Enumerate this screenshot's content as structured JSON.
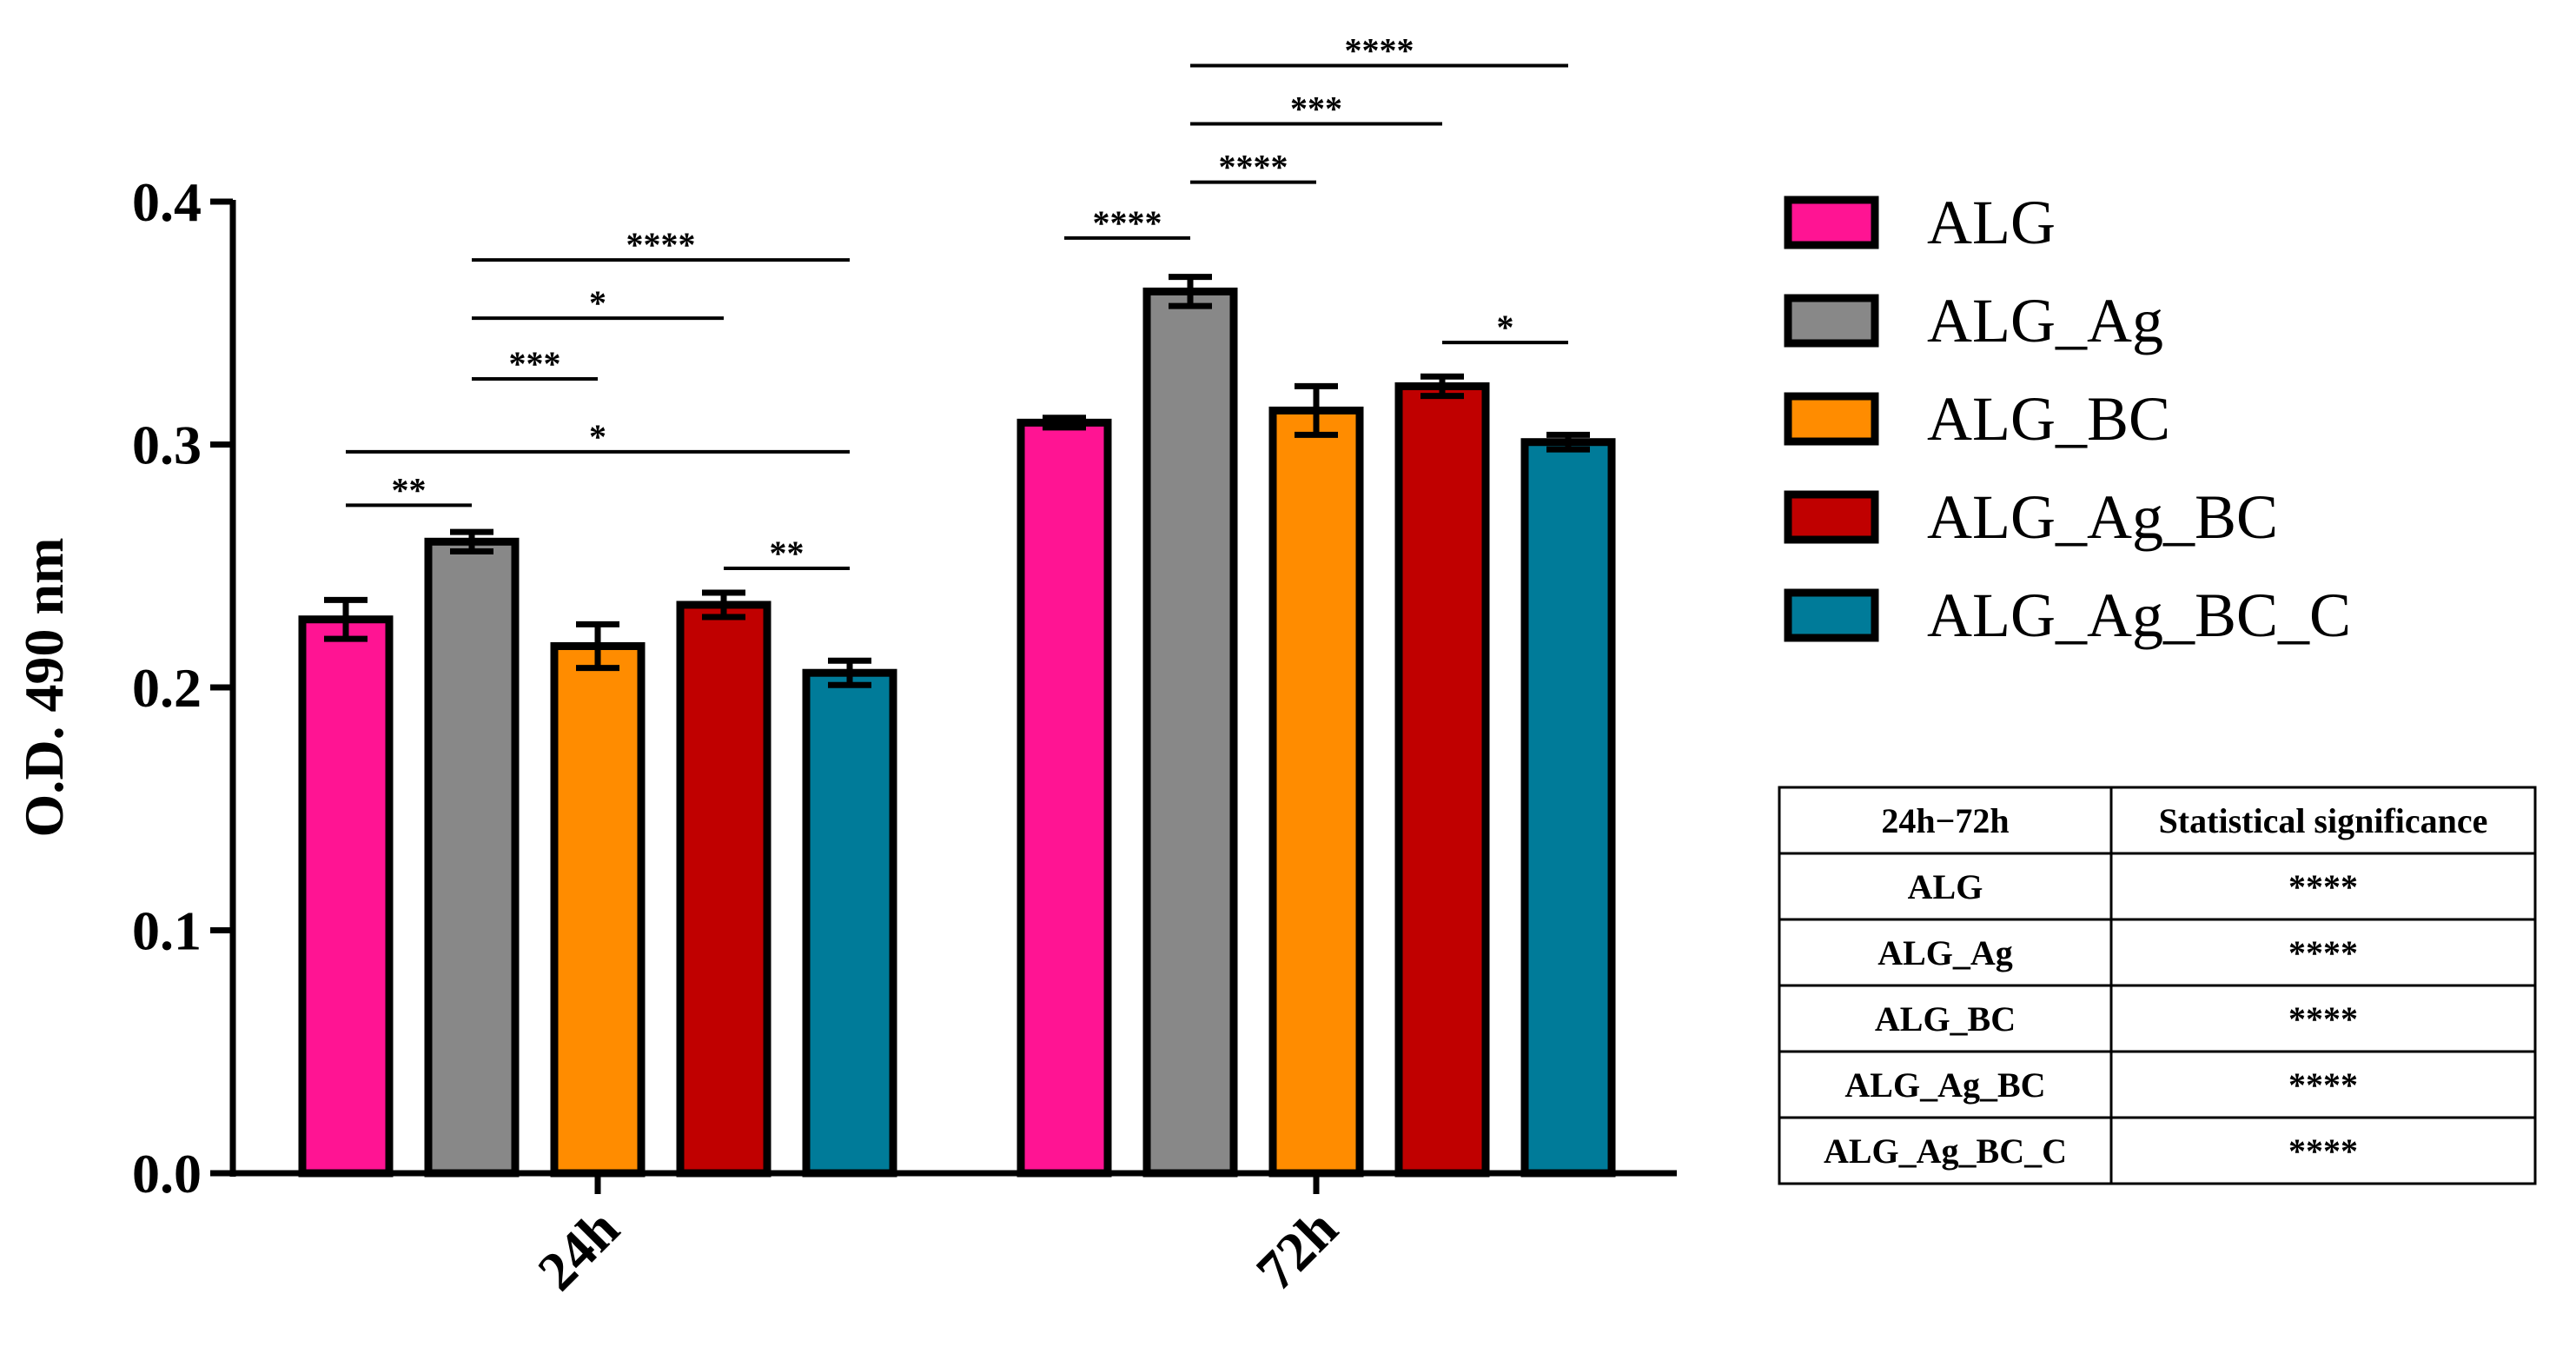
{
  "chart_data": {
    "type": "bar",
    "ylabel": "O.D. 490 nm",
    "xlabel": "",
    "ylim": [
      0,
      0.4
    ],
    "yticks": [
      "0.0",
      "0.1",
      "0.2",
      "0.3",
      "0.4"
    ],
    "categories": [
      "24h",
      "72h"
    ],
    "series": [
      {
        "name": "ALG",
        "color": "#ff1493",
        "values": [
          0.228,
          0.309
        ],
        "errors": [
          0.008,
          0.002
        ]
      },
      {
        "name": "ALG_Ag",
        "color": "#888888",
        "values": [
          0.26,
          0.363
        ],
        "errors": [
          0.004,
          0.006
        ]
      },
      {
        "name": "ALG_BC",
        "color": "#ff8c00",
        "values": [
          0.217,
          0.314
        ],
        "errors": [
          0.009,
          0.01
        ]
      },
      {
        "name": "ALG_Ag_BC",
        "color": "#c00000",
        "values": [
          0.234,
          0.324
        ],
        "errors": [
          0.005,
          0.004
        ]
      },
      {
        "name": "ALG_Ag_BC_C",
        "color": "#007b99",
        "values": [
          0.206,
          0.301
        ],
        "errors": [
          0.005,
          0.003
        ]
      }
    ],
    "legend_position": "right",
    "significance": [
      {
        "category": 0,
        "from": 0,
        "to": 1,
        "y": 0.275,
        "label": "**"
      },
      {
        "category": 0,
        "from": 0,
        "to": 4,
        "y": 0.297,
        "label": "*"
      },
      {
        "category": 0,
        "from": 1,
        "to": 2,
        "y": 0.327,
        "label": "***"
      },
      {
        "category": 0,
        "from": 1,
        "to": 3,
        "y": 0.352,
        "label": "*"
      },
      {
        "category": 0,
        "from": 1,
        "to": 4,
        "y": 0.376,
        "label": "****"
      },
      {
        "category": 0,
        "from": 3,
        "to": 4,
        "y": 0.249,
        "label": "**"
      },
      {
        "category": 1,
        "from": 0,
        "to": 1,
        "y": 0.385,
        "label": "****"
      },
      {
        "category": 1,
        "from": 1,
        "to": 2,
        "y": 0.408,
        "label": "****"
      },
      {
        "category": 1,
        "from": 1,
        "to": 3,
        "y": 0.432,
        "label": "***"
      },
      {
        "category": 1,
        "from": 1,
        "to": 4,
        "y": 0.456,
        "label": "****"
      },
      {
        "category": 1,
        "from": 3,
        "to": 4,
        "y": 0.342,
        "label": "*"
      }
    ]
  },
  "table": {
    "headers": [
      "24h−72h",
      "Statistical significance"
    ],
    "rows": [
      [
        "ALG",
        "****"
      ],
      [
        "ALG_Ag",
        "****"
      ],
      [
        "ALG_BC",
        "****"
      ],
      [
        "ALG_Ag_BC",
        "****"
      ],
      [
        "ALG_Ag_BC_C",
        "****"
      ]
    ]
  }
}
